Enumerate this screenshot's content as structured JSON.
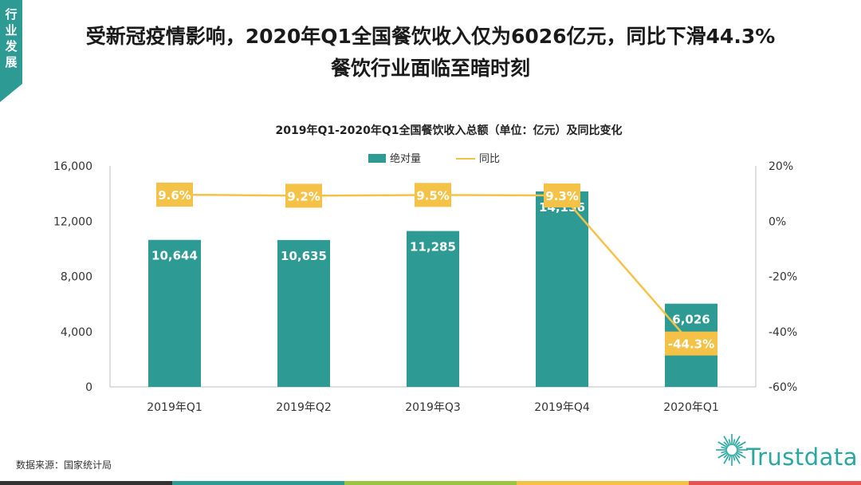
{
  "side_tab": {
    "label": "行业发展",
    "color": "#2e9a94"
  },
  "headline": {
    "line1": "受新冠疫情影响，2020年Q1全国餐饮收入仅为6026亿元，同比下滑44.3%",
    "line2": "餐饮行业面临至暗时刻"
  },
  "source": "数据来源：国家统计局",
  "logo": {
    "text": "Trustdata",
    "icon": "burst-logo-icon",
    "color": "#2aa7a0"
  },
  "bottom_strip_colors": [
    "#333333",
    "#2e9a94",
    "#9bc443",
    "#f4c247",
    "#e8534f"
  ],
  "chart_data": {
    "type": "bar",
    "title": "2019年Q1-2020年Q1全国餐饮收入总额（单位：亿元）及同比变化",
    "categories": [
      "2019年Q1",
      "2019年Q2",
      "2019年Q3",
      "2019年Q4",
      "2020年Q1"
    ],
    "series": [
      {
        "name": "绝对量",
        "kind": "bar",
        "axis": "left",
        "color": "#2e9a94",
        "values": [
          10644,
          10635,
          11285,
          14156,
          6026
        ],
        "labels": [
          "10,644",
          "10,635",
          "11,285",
          "14,156",
          "6,026"
        ]
      },
      {
        "name": "同比",
        "kind": "line",
        "axis": "right",
        "color": "#f4c247",
        "values": [
          9.6,
          9.2,
          9.5,
          9.3,
          -44.3
        ],
        "labels": [
          "9.6%",
          "9.2%",
          "9.5%",
          "9.3%",
          "-44.3%"
        ]
      }
    ],
    "y_left": {
      "min": 0,
      "max": 16000,
      "ticks": [
        0,
        4000,
        8000,
        12000,
        16000
      ],
      "tick_labels": [
        "0",
        "4,000",
        "8,000",
        "12,000",
        "16,000"
      ]
    },
    "y_right": {
      "min": -60,
      "max": 20,
      "ticks": [
        -60,
        -40,
        -20,
        0,
        20
      ],
      "tick_labels": [
        "-60%",
        "-40%",
        "-20%",
        "0%",
        "20%"
      ]
    },
    "legend_position": "top-center",
    "grid": false
  }
}
